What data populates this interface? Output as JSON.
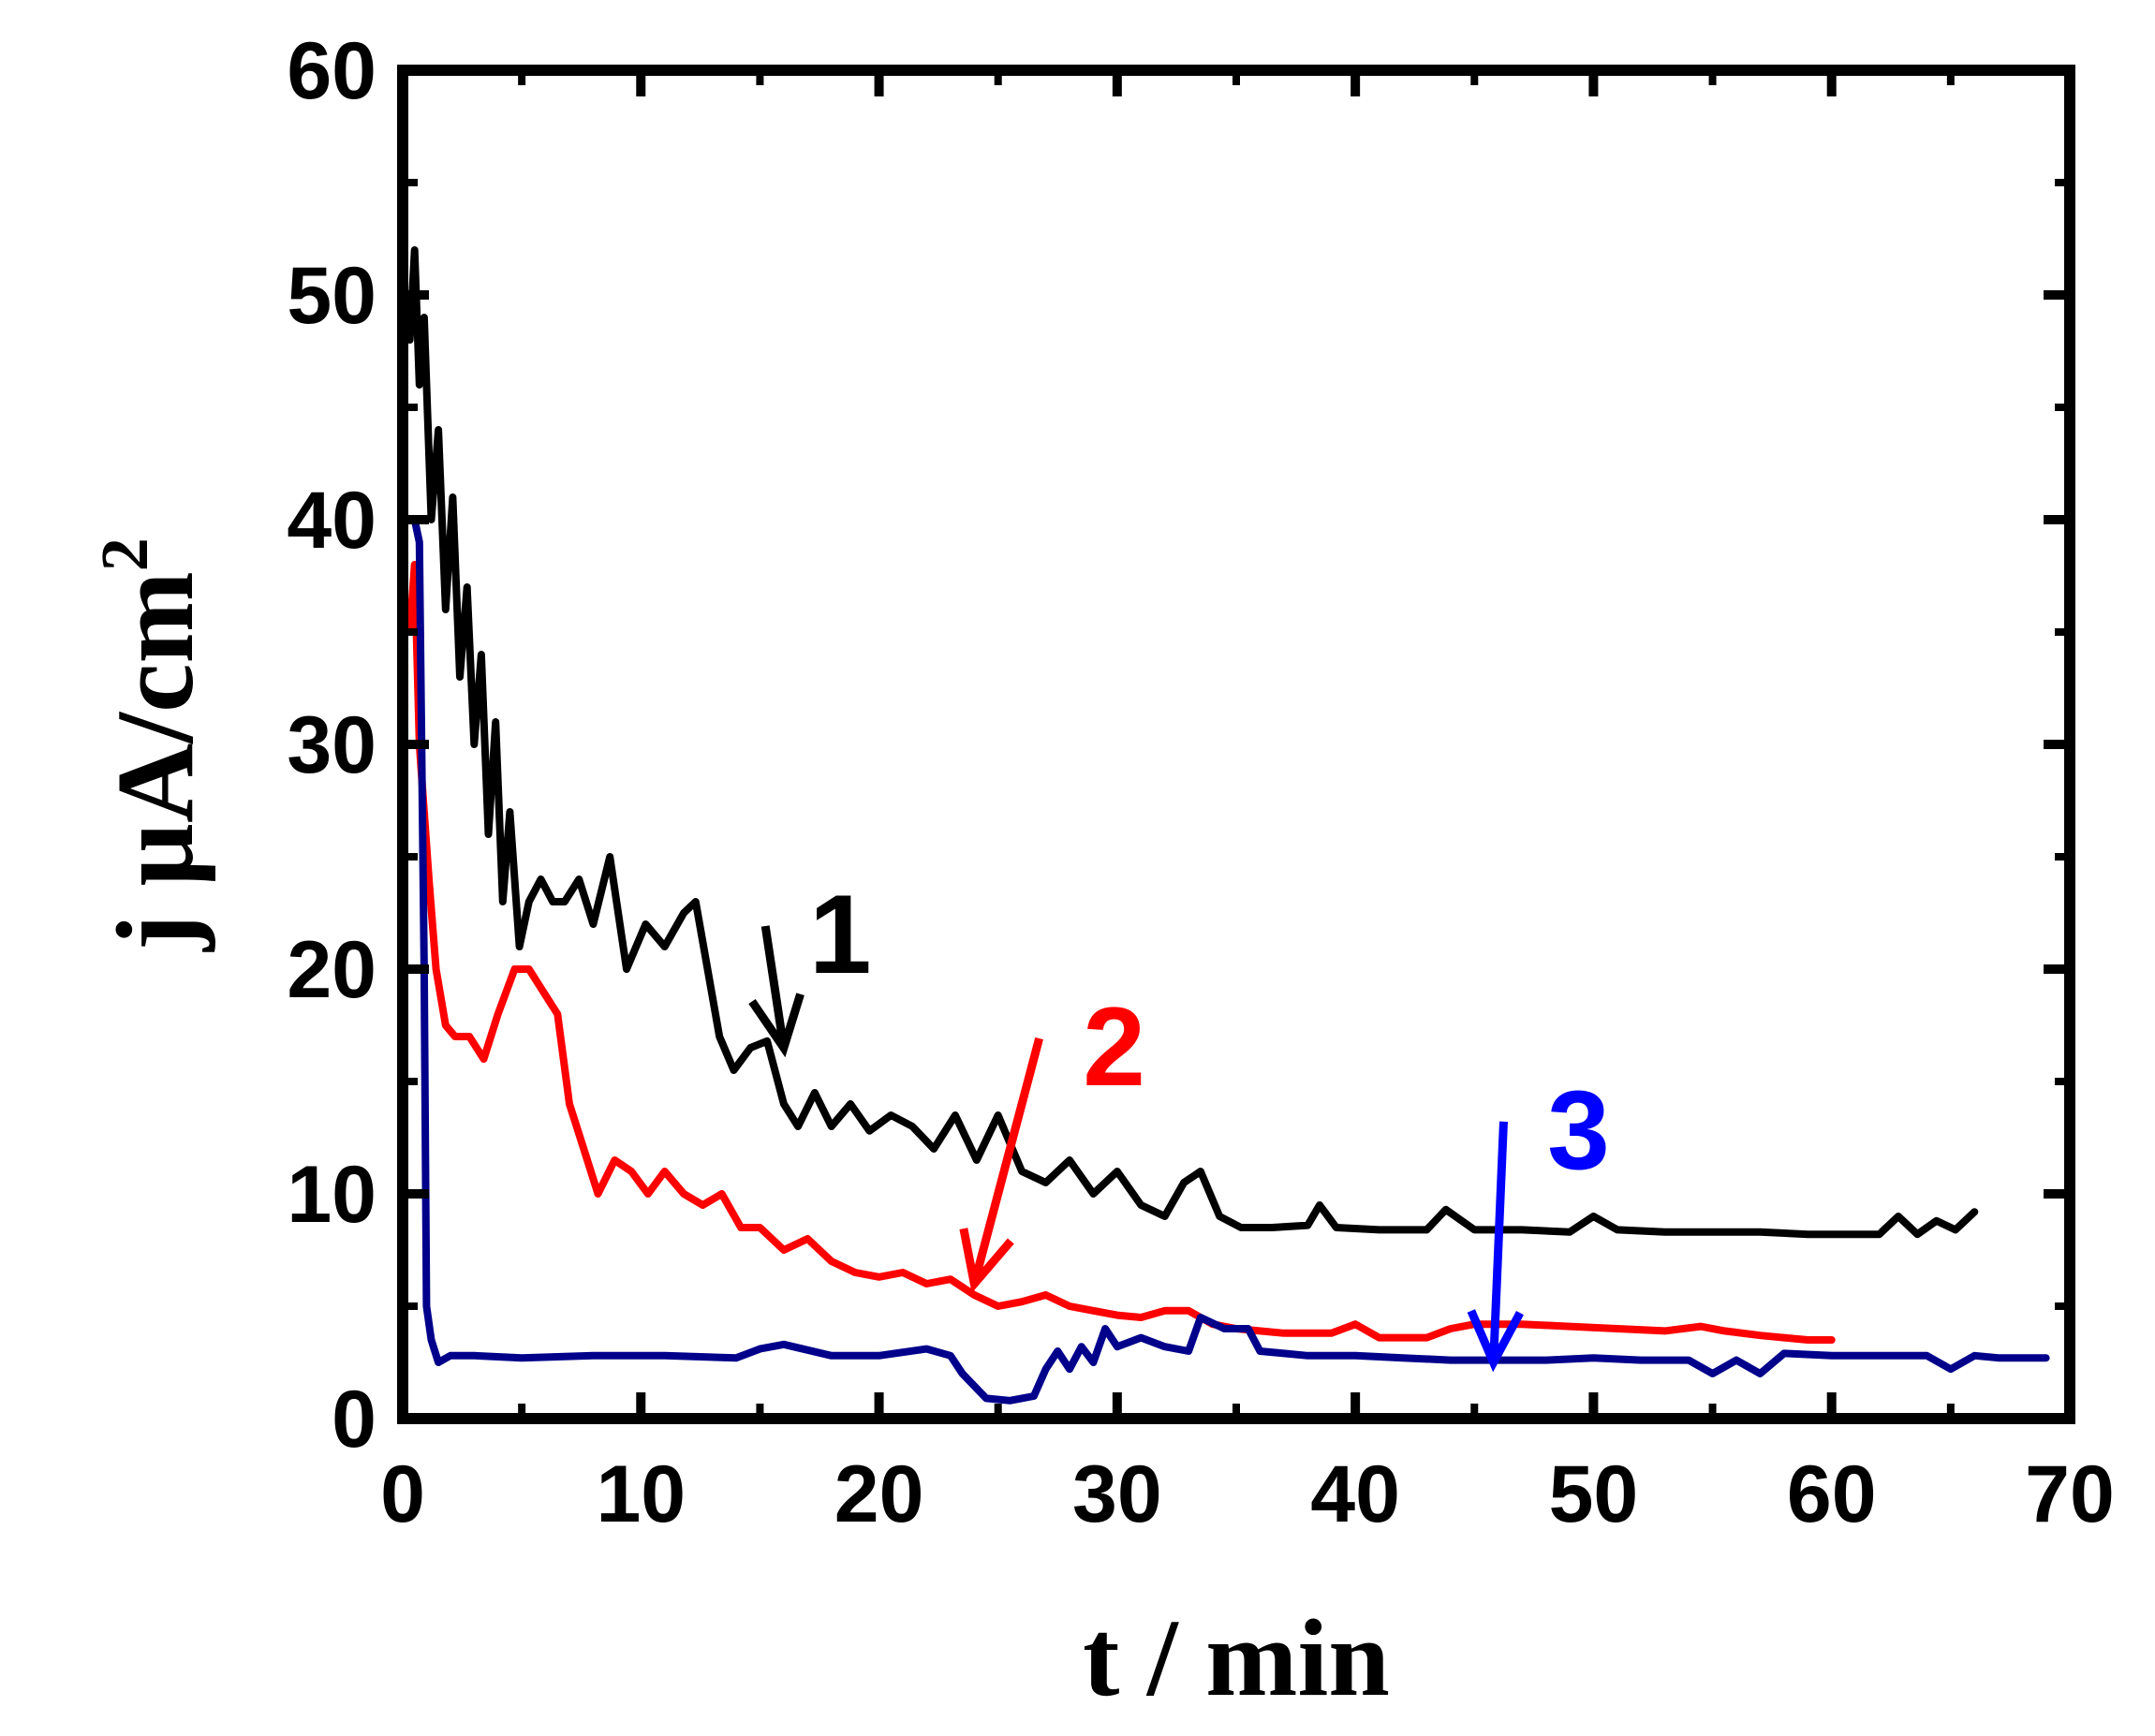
{
  "chart_data": {
    "type": "line",
    "xlabel": "t / min",
    "ylabel": "j µA/cm",
    "ylabel_superscript": "2",
    "xlim": [
      0,
      70
    ],
    "ylim": [
      0,
      60
    ],
    "x_ticks": [
      "0",
      "10",
      "20",
      "30",
      "40",
      "50",
      "60",
      "70"
    ],
    "y_ticks": [
      "0",
      "10",
      "20",
      "30",
      "40",
      "50",
      "60"
    ],
    "grid": false,
    "legend": "none",
    "series": [
      {
        "name": "1",
        "color": "#000000",
        "x": [
          0.3,
          0.5,
          0.7,
          0.9,
          1.2,
          1.5,
          1.8,
          2.1,
          2.4,
          2.7,
          3.0,
          3.3,
          3.6,
          3.9,
          4.2,
          4.5,
          4.9,
          5.3,
          5.8,
          6.3,
          6.8,
          7.4,
          8.0,
          8.7,
          9.4,
          10.2,
          11.0,
          11.8,
          12.3,
          12.8,
          13.3,
          13.9,
          14.6,
          15.3,
          16.0,
          16.6,
          17.3,
          18.0,
          18.8,
          19.6,
          20.5,
          21.4,
          22.3,
          23.2,
          24.1,
          25.0,
          26.0,
          27.0,
          28.0,
          29.0,
          30.0,
          31.0,
          32.0,
          32.8,
          33.5,
          34.3,
          35.2,
          36.5,
          38.0,
          38.5,
          39.2,
          41.0,
          43.0,
          43.8,
          45.0,
          47.0,
          49.0,
          50.0,
          51.0,
          53.0,
          55.0,
          57.0,
          59.0,
          61.0,
          62.0,
          62.8,
          63.6,
          64.4,
          65.2,
          66.0
        ],
        "y": [
          48,
          52,
          46,
          49,
          40,
          44,
          36,
          41,
          33,
          37,
          30,
          34,
          26,
          31,
          23,
          27,
          21,
          23,
          24,
          23,
          23,
          24,
          22,
          25,
          20,
          22,
          21,
          22.5,
          23,
          20,
          17,
          15.5,
          16.5,
          16.8,
          14,
          13,
          14.5,
          13,
          14,
          12.8,
          13.5,
          13,
          12,
          13.5,
          11.5,
          13.5,
          11,
          10.5,
          11.5,
          10,
          11,
          9.5,
          9,
          10.5,
          11,
          9,
          8.5,
          8.5,
          8.6,
          9.5,
          8.5,
          8.4,
          8.4,
          9.3,
          8.4,
          8.4,
          8.3,
          9,
          8.4,
          8.3,
          8.3,
          8.3,
          8.2,
          8.2,
          8.2,
          9,
          8.2,
          8.8,
          8.4,
          9.2
        ]
      },
      {
        "name": "2",
        "color": "#ff0000",
        "x": [
          0.3,
          0.5,
          0.7,
          0.9,
          1.1,
          1.4,
          1.8,
          2.2,
          2.8,
          3.4,
          4.0,
          4.7,
          5.3,
          5.9,
          6.5,
          7.0,
          7.6,
          8.2,
          8.9,
          9.6,
          10.3,
          11.0,
          11.8,
          12.6,
          13.4,
          14.2,
          15.0,
          16.0,
          17.0,
          18.0,
          19.0,
          20.0,
          21.0,
          22.0,
          23.0,
          24.0,
          25.0,
          26.0,
          27.0,
          28.0,
          29.0,
          30.0,
          31.0,
          32.0,
          33.0,
          34.0,
          35.0,
          37.0,
          39.0,
          40.0,
          41.0,
          42.0,
          43.0,
          44.0,
          45.0,
          47.0,
          49.0,
          51.0,
          53.0,
          54.5,
          55.5,
          57.0,
          59.0,
          60.0
        ],
        "y": [
          35,
          38,
          30,
          27,
          24,
          20,
          17.5,
          17,
          17,
          16,
          18,
          20,
          20,
          19,
          18,
          14,
          12,
          10,
          11.5,
          11,
          10,
          11,
          10,
          9.5,
          10,
          8.5,
          8.5,
          7.5,
          8,
          7,
          6.5,
          6.3,
          6.5,
          6,
          6.2,
          5.5,
          5,
          5.2,
          5.5,
          5,
          4.8,
          4.6,
          4.5,
          4.8,
          4.8,
          4.2,
          4.0,
          3.8,
          3.8,
          4.2,
          3.6,
          3.6,
          3.6,
          4.0,
          4.2,
          4.2,
          4.1,
          4.0,
          3.9,
          4.1,
          3.9,
          3.7,
          3.5,
          3.5
        ]
      },
      {
        "name": "3",
        "color": "#00008b",
        "x": [
          0.5,
          0.7,
          0.9,
          1.0,
          1.2,
          1.5,
          2.0,
          3.0,
          5.0,
          8.0,
          11.0,
          14.0,
          15.0,
          16.0,
          18.0,
          20.0,
          22.0,
          23.0,
          23.5,
          24.5,
          25.5,
          26.5,
          27.0,
          27.5,
          28.0,
          28.5,
          29.0,
          29.5,
          30.0,
          31.0,
          32.0,
          33.0,
          33.5,
          34.5,
          35.5,
          36.0,
          37.0,
          38.0,
          40.0,
          42.0,
          44.0,
          46.0,
          48.0,
          50.0,
          52.0,
          54.0,
          55.0,
          56.0,
          57.0,
          58.0,
          60.0,
          62.0,
          64.0,
          65.0,
          66.0,
          67.0,
          68.0,
          69.0
        ],
        "y": [
          40,
          39,
          20,
          5,
          3.5,
          2.5,
          2.8,
          2.8,
          2.7,
          2.8,
          2.8,
          2.7,
          3.1,
          3.3,
          2.8,
          2.8,
          3.1,
          2.8,
          2.0,
          0.9,
          0.8,
          1.0,
          2.2,
          3.0,
          2.2,
          3.2,
          2.5,
          4.0,
          3.2,
          3.6,
          3.2,
          3.0,
          4.5,
          4.0,
          4.0,
          3.0,
          2.9,
          2.8,
          2.8,
          2.7,
          2.6,
          2.6,
          2.6,
          2.7,
          2.6,
          2.6,
          2.0,
          2.6,
          2.0,
          2.9,
          2.8,
          2.8,
          2.8,
          2.2,
          2.8,
          2.7,
          2.7,
          2.7
        ]
      }
    ],
    "annotations": [
      {
        "text": "1",
        "color": "#000000",
        "label_x": 16.8,
        "label_y": 21.5,
        "tip_x": 16.0,
        "tip_y": 16.5
      },
      {
        "text": "2",
        "color": "#ff0000",
        "label_x": 28.3,
        "label_y": 16.5,
        "tip_x": 24.0,
        "tip_y": 6.0
      },
      {
        "text": "3",
        "color": "#0000ff",
        "label_x": 47.8,
        "label_y": 12.8,
        "tip_x": 45.8,
        "tip_y": 2.5
      }
    ]
  }
}
